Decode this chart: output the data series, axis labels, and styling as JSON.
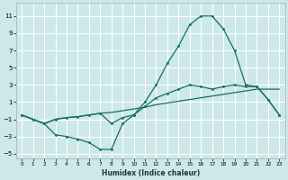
{
  "xlabel": "Humidex (Indice chaleur)",
  "background_color": "#cce8e8",
  "grid_color": "#ffffff",
  "line_color": "#1a6b6b",
  "curve1_x": [
    0,
    1,
    2,
    3,
    4,
    5,
    6,
    7,
    8,
    9,
    10,
    11,
    12,
    13,
    14,
    15,
    16,
    17,
    18,
    19,
    20,
    21,
    22,
    23
  ],
  "curve1_y": [
    -0.5,
    -1.0,
    -1.5,
    -2.8,
    -3.0,
    -3.3,
    -3.7,
    -4.5,
    -4.5,
    -1.5,
    -0.5,
    1.0,
    3.0,
    5.5,
    7.5,
    10.0,
    11.0,
    11.0,
    9.5,
    7.0,
    3.0,
    2.8,
    1.3,
    -0.5
  ],
  "curve2_x": [
    0,
    1,
    2,
    3,
    4,
    5,
    6,
    7,
    8,
    9,
    10,
    11,
    12,
    13,
    14,
    15,
    16,
    17,
    18,
    19,
    20,
    21,
    22,
    23
  ],
  "curve2_y": [
    -0.5,
    -1.0,
    -1.5,
    -1.0,
    -0.8,
    -0.7,
    -0.5,
    -0.3,
    -0.2,
    0.0,
    0.2,
    0.4,
    0.7,
    0.9,
    1.1,
    1.3,
    1.5,
    1.7,
    1.9,
    2.1,
    2.3,
    2.5,
    2.5,
    2.5
  ],
  "curve3_x": [
    0,
    1,
    2,
    3,
    4,
    5,
    6,
    7,
    8,
    9,
    10,
    11,
    12,
    13,
    14,
    15,
    16,
    17,
    18,
    19,
    20,
    21,
    22,
    23
  ],
  "curve3_y": [
    -0.5,
    -1.0,
    -1.5,
    -1.0,
    -0.8,
    -0.7,
    -0.5,
    -0.3,
    -1.5,
    -0.8,
    -0.5,
    0.5,
    1.5,
    2.0,
    2.5,
    3.0,
    2.8,
    2.5,
    2.8,
    3.0,
    2.8,
    2.8,
    1.3,
    -0.5
  ],
  "ylim": [
    -5.5,
    12.5
  ],
  "xlim": [
    -0.5,
    23.5
  ],
  "yticks": [
    -5,
    -3,
    -1,
    1,
    3,
    5,
    7,
    9,
    11
  ],
  "xticks": [
    0,
    1,
    2,
    3,
    4,
    5,
    6,
    7,
    8,
    9,
    10,
    11,
    12,
    13,
    14,
    15,
    16,
    17,
    18,
    19,
    20,
    21,
    22,
    23
  ]
}
